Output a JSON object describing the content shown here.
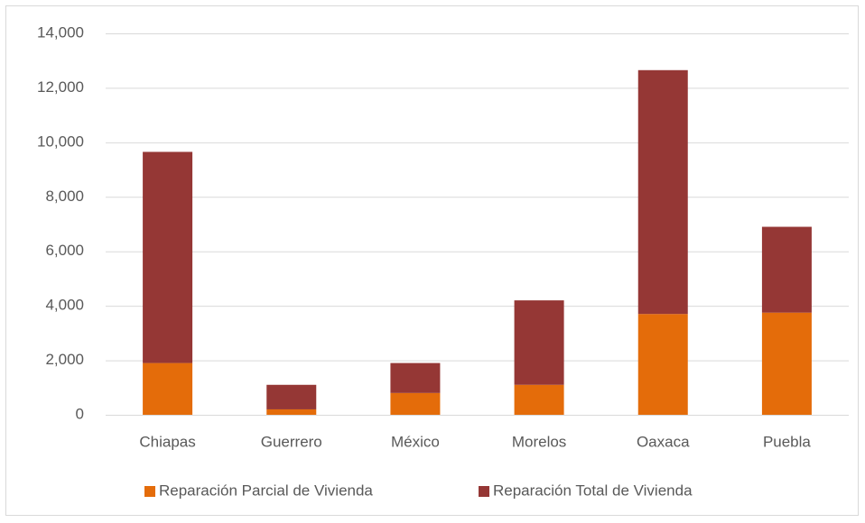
{
  "chart_data": {
    "type": "stacked_bar",
    "categories": [
      "Chiapas",
      "Guerrero",
      "México",
      "Morelos",
      "Oaxaca",
      "Puebla"
    ],
    "series": [
      {
        "name": "Reparación Parcial de Vivienda",
        "color": "#e46c0a",
        "values": [
          1900,
          200,
          800,
          1100,
          3700,
          3750
        ]
      },
      {
        "name": "Reparación Total de Vivienda",
        "color": "#953735",
        "values": [
          7750,
          900,
          1100,
          3100,
          8950,
          3150
        ]
      }
    ],
    "ylim": [
      0,
      14000
    ],
    "yticks": [
      0,
      {
        "value": 2000,
        "label": "2,000"
      },
      {
        "value": 4000,
        "label": "4,000"
      },
      {
        "value": 6000,
        "label": "6,000"
      },
      {
        "value": 8000,
        "label": "8,000"
      },
      {
        "value": 10000,
        "label": "10,000"
      },
      {
        "value": 12000,
        "label": "12,000"
      },
      {
        "value": 14000,
        "label": "14,000"
      }
    ],
    "grid": true,
    "legend": "bottom"
  }
}
